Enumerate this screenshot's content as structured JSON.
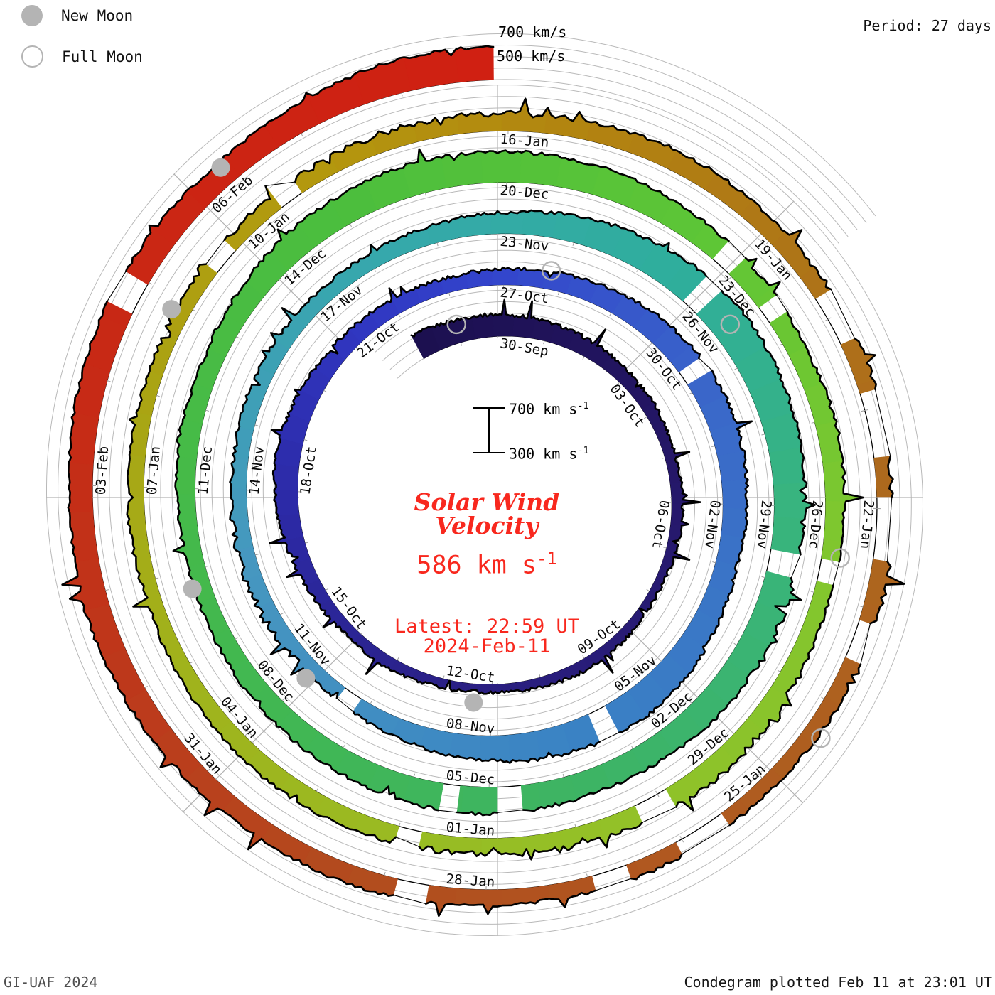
{
  "header": {
    "period_label": "Period: 27 days"
  },
  "legend": {
    "new_moon_label": "New Moon",
    "full_moon_label": "Full Moon",
    "moon_gray": "#b4b4b4"
  },
  "top_axis_labels": {
    "outer": "700 km/s",
    "inner": "500 km/s"
  },
  "center": {
    "scale_top": "700 km s",
    "scale_top_sup": "-1",
    "scale_bottom": "300 km s",
    "scale_bottom_sup": "-1",
    "title_line1": "Solar Wind",
    "title_line2": "Velocity",
    "value": "586 km s",
    "value_sup": "-1",
    "latest_line1": "Latest: 22:59 UT",
    "latest_line2": "2024-Feb-11",
    "accent_color": "#f8281e"
  },
  "footer": {
    "left": "GI-UAF 2024",
    "right": "Condegram plotted Feb 11 at 23:01 UT"
  },
  "chart_data": {
    "type": "spiral-condegram",
    "title": "Solar Wind Velocity",
    "units": "km/s",
    "period_days": 27,
    "revolutions": 5,
    "start_day_offset": -2.1,
    "end_day_offset": 134.96,
    "latest_value": 586,
    "radial_axis": {
      "min": 300,
      "max": 700,
      "gridline_step": 100
    },
    "day0_date": "30-Sep",
    "daily_values": [
      520,
      500,
      490,
      470,
      450,
      430,
      415,
      400,
      395,
      400,
      385,
      370,
      380,
      395,
      390,
      375,
      365,
      380,
      395,
      390,
      415,
      450,
      490,
      515,
      490,
      460,
      445,
      435,
      425,
      435,
      455,
      480,
      505,
      525,
      540,
      525,
      505,
      485,
      510,
      550,
      575,
      560,
      540,
      505,
      470,
      440,
      415,
      430,
      445,
      435,
      425,
      440,
      435,
      425,
      440,
      455,
      480,
      520,
      560,
      595,
      615,
      600,
      580,
      560,
      545,
      555,
      540,
      520,
      505,
      520,
      535,
      520,
      500,
      480,
      460,
      440,
      455,
      475,
      460,
      495,
      535,
      560,
      575,
      570,
      555,
      535,
      505,
      480,
      462,
      478,
      462,
      445,
      452,
      468,
      485,
      470,
      452,
      435,
      450,
      466,
      452,
      435,
      422,
      440,
      430,
      420,
      438,
      428,
      446,
      462,
      444,
      458,
      476,
      466,
      450,
      458,
      442,
      430,
      448,
      438,
      428,
      420,
      438,
      428,
      446,
      466,
      458,
      476,
      496,
      515,
      500,
      518,
      536,
      520,
      502,
      540,
      586
    ],
    "gaps": [
      [
        31.2,
        31.45
      ],
      [
        38.5,
        38.75
      ],
      [
        43.1,
        43.35
      ],
      [
        57.3,
        57.5
      ],
      [
        61.6,
        61.85
      ],
      [
        67.2,
        67.45
      ],
      [
        68.1,
        68.3
      ],
      [
        84.2,
        84.45
      ],
      [
        85.1,
        85.3
      ],
      [
        88.6,
        88.85
      ],
      [
        92.3,
        92.7
      ],
      [
        95.5,
        95.75
      ],
      [
        104.2,
        104.5
      ],
      [
        105.3,
        105.55
      ],
      [
        112.4,
        112.9
      ],
      [
        113.6,
        114.3
      ],
      [
        114.8,
        115.4
      ],
      [
        116.2,
        116.6
      ],
      [
        118.9,
        119.4
      ],
      [
        120.1,
        120.45
      ],
      [
        122.3,
        122.6
      ],
      [
        130.3,
        130.55
      ]
    ],
    "noisy_regions": [
      [
        44,
        47
      ],
      [
        60.5,
        63.5
      ],
      [
        90,
        96
      ],
      [
        103,
        109
      ],
      [
        112,
        117
      ]
    ],
    "date_labels": [
      {
        "d": 0,
        "t": "30-Sep"
      },
      {
        "d": 3.375,
        "t": "03-Oct"
      },
      {
        "d": 6.75,
        "t": "06-Oct"
      },
      {
        "d": 10.125,
        "t": "09-Oct"
      },
      {
        "d": 13.5,
        "t": "12-Oct"
      },
      {
        "d": 16.875,
        "t": "15-Oct"
      },
      {
        "d": 20.25,
        "t": "18-Oct"
      },
      {
        "d": 23.625,
        "t": "21-Oct"
      },
      {
        "d": 27,
        "t": "27-Oct"
      },
      {
        "d": 30.375,
        "t": "30-Oct"
      },
      {
        "d": 33.75,
        "t": "02-Nov"
      },
      {
        "d": 37.125,
        "t": "05-Nov"
      },
      {
        "d": 40.5,
        "t": "08-Nov"
      },
      {
        "d": 43.875,
        "t": "11-Nov"
      },
      {
        "d": 47.25,
        "t": "14-Nov"
      },
      {
        "d": 50.625,
        "t": "17-Nov"
      },
      {
        "d": 54,
        "t": "23-Nov"
      },
      {
        "d": 57.375,
        "t": "26-Nov"
      },
      {
        "d": 60.75,
        "t": "29-Nov"
      },
      {
        "d": 64.125,
        "t": "02-Dec"
      },
      {
        "d": 67.5,
        "t": "05-Dec"
      },
      {
        "d": 70.875,
        "t": "08-Dec"
      },
      {
        "d": 74.25,
        "t": "11-Dec"
      },
      {
        "d": 77.625,
        "t": "14-Dec"
      },
      {
        "d": 81,
        "t": "20-Dec"
      },
      {
        "d": 84.375,
        "t": "23-Dec"
      },
      {
        "d": 87.75,
        "t": "26-Dec"
      },
      {
        "d": 91.125,
        "t": "29-Dec"
      },
      {
        "d": 94.5,
        "t": "01-Jan"
      },
      {
        "d": 97.875,
        "t": "04-Jan"
      },
      {
        "d": 101.25,
        "t": "07-Jan"
      },
      {
        "d": 104.625,
        "t": "10-Jan"
      },
      {
        "d": 108,
        "t": "16-Jan"
      },
      {
        "d": 111.375,
        "t": "19-Jan"
      },
      {
        "d": 114.75,
        "t": "22-Jan"
      },
      {
        "d": 118.125,
        "t": "25-Jan"
      },
      {
        "d": 121.5,
        "t": "28-Jan"
      },
      {
        "d": 124.875,
        "t": "31-Jan"
      },
      {
        "d": 128.25,
        "t": "03-Feb"
      },
      {
        "d": 131.625,
        "t": "06-Feb"
      }
    ],
    "moons": {
      "full_days": [
        -1,
        28,
        58,
        88.5,
        117.5
      ],
      "new_days": [
        14,
        44,
        73,
        103.5,
        132
      ]
    },
    "color_stops": [
      [
        -2,
        "#1c1050"
      ],
      [
        6,
        "#251768"
      ],
      [
        14,
        "#2a1f82"
      ],
      [
        20,
        "#2c2aa6"
      ],
      [
        24,
        "#3036c0"
      ],
      [
        27,
        "#3345cc"
      ],
      [
        32,
        "#3a68c9"
      ],
      [
        39,
        "#3a82c4"
      ],
      [
        46,
        "#4697c0"
      ],
      [
        52,
        "#36a8ac"
      ],
      [
        57,
        "#2fae9c"
      ],
      [
        61,
        "#38b47e"
      ],
      [
        66,
        "#3db465"
      ],
      [
        72,
        "#42b84f"
      ],
      [
        79,
        "#4cbe3d"
      ],
      [
        84,
        "#5ec636"
      ],
      [
        88,
        "#7ec72f"
      ],
      [
        93,
        "#93c128"
      ],
      [
        99,
        "#a0b31c"
      ],
      [
        103,
        "#aba212"
      ],
      [
        106,
        "#b4970e"
      ],
      [
        109,
        "#b28410"
      ],
      [
        112,
        "#ae7418"
      ],
      [
        115,
        "#ad671e"
      ],
      [
        119,
        "#af5a20"
      ],
      [
        123,
        "#b24c1e"
      ],
      [
        126,
        "#bc3a1c"
      ],
      [
        129,
        "#c62b16"
      ],
      [
        132,
        "#cc2413"
      ],
      [
        135,
        "#d02012"
      ]
    ],
    "grid_color": "#b9b9b9",
    "spoke_color": "#b3b3b3",
    "tick_color": "#9d9d9d"
  }
}
